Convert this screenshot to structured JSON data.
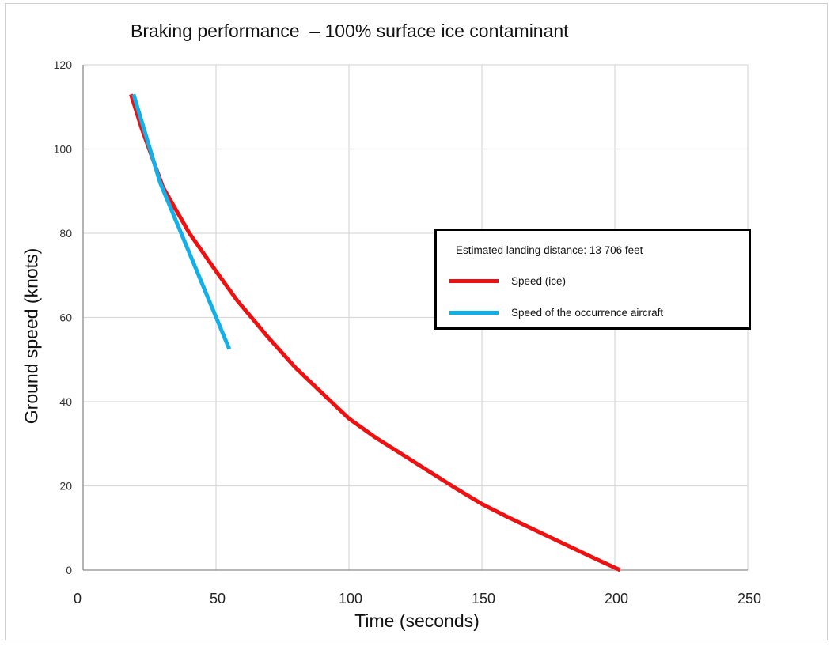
{
  "chart_data": {
    "type": "line",
    "title": "Braking performance  – 100% surface ice contaminant",
    "xlabel": "Time (seconds)",
    "ylabel": "Ground speed (knots)",
    "xlim": [
      0,
      250
    ],
    "ylim": [
      0,
      120
    ],
    "xticks": [
      "0",
      "50",
      "100",
      "150",
      "200",
      "250"
    ],
    "yticks": [
      "0",
      "20",
      "40",
      "60",
      "80",
      "100",
      "120"
    ],
    "grid": true,
    "legend_position": "center-right",
    "annotation": "Estimated landing distance: 13 706 feet",
    "series": [
      {
        "name": "Speed (ice)",
        "color": "#ee1111",
        "points": [
          [
            18,
            113
          ],
          [
            22,
            105
          ],
          [
            30,
            91
          ],
          [
            40,
            80
          ],
          [
            50,
            71
          ],
          [
            58,
            64
          ],
          [
            70,
            55
          ],
          [
            80,
            48
          ],
          [
            90,
            42
          ],
          [
            100,
            36
          ],
          [
            110,
            31.5
          ],
          [
            120,
            27.5
          ],
          [
            130,
            23.5
          ],
          [
            140,
            19.5
          ],
          [
            150,
            15.7
          ],
          [
            160,
            12.5
          ],
          [
            170,
            9.5
          ],
          [
            180,
            6.5
          ],
          [
            190,
            3.5
          ],
          [
            202,
            0
          ]
        ]
      },
      {
        "name": "Speed of the occurrence aircraft",
        "color": "#13b0e8",
        "points": [
          [
            19,
            113
          ],
          [
            29,
            92
          ],
          [
            55,
            52.5
          ]
        ]
      }
    ]
  }
}
